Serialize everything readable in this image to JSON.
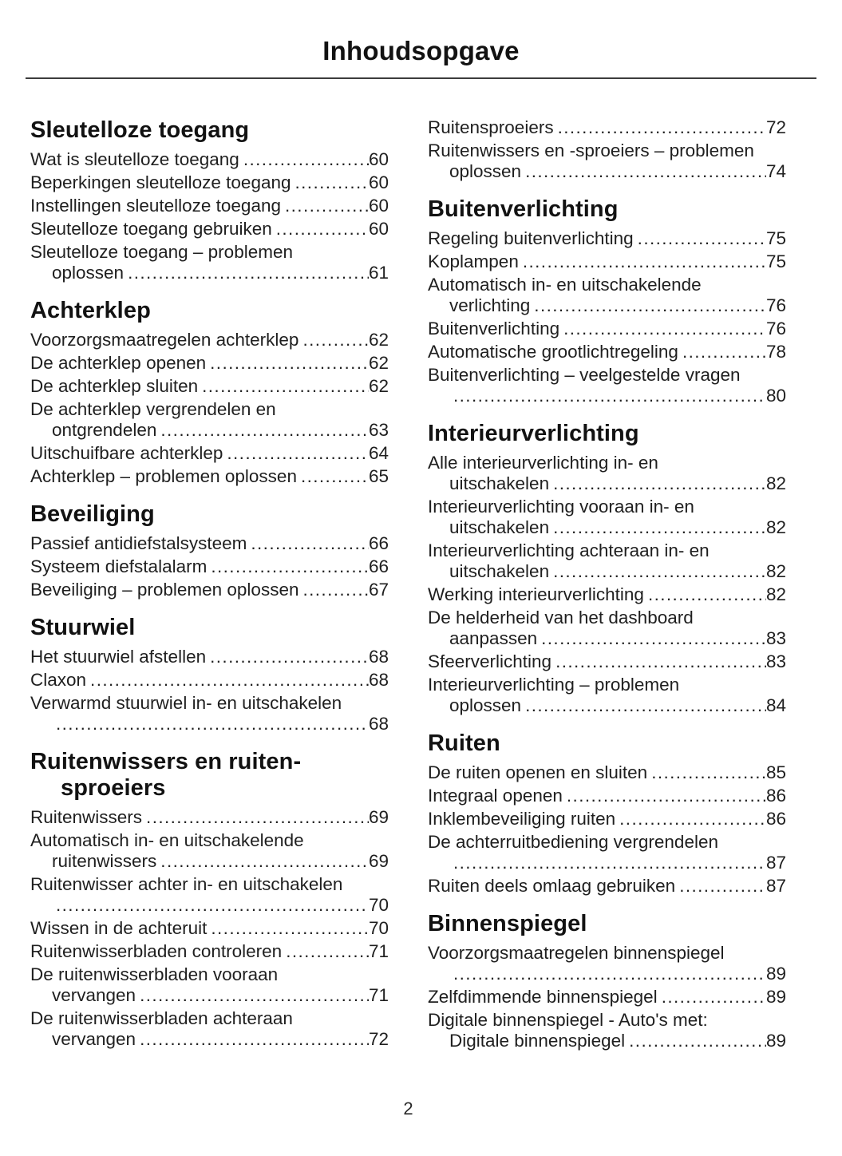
{
  "title": "Inhoudsopgave",
  "page_number": "2",
  "columns": [
    {
      "sections": [
        {
          "title_lines": [
            "Sleutelloze toegang"
          ],
          "entries": [
            {
              "lines": [
                "Wat is sleutelloze toegang"
              ],
              "page": "60"
            },
            {
              "lines": [
                "Beperkingen sleutelloze toegang"
              ],
              "page": "60"
            },
            {
              "lines": [
                "Instellingen sleutelloze toegang"
              ],
              "page": "60"
            },
            {
              "lines": [
                "Sleutelloze toegang gebruiken"
              ],
              "page": "60"
            },
            {
              "lines": [
                "Sleutelloze toegang – problemen",
                "oplossen"
              ],
              "page": "61"
            }
          ]
        },
        {
          "title_lines": [
            "Achterklep"
          ],
          "entries": [
            {
              "lines": [
                "Voorzorgsmaatregelen achterklep"
              ],
              "page": "62"
            },
            {
              "lines": [
                "De achterklep openen"
              ],
              "page": "62"
            },
            {
              "lines": [
                "De achterklep sluiten"
              ],
              "page": "62"
            },
            {
              "lines": [
                "De achterklep vergrendelen en",
                "ontgrendelen"
              ],
              "page": "63"
            },
            {
              "lines": [
                "Uitschuifbare achterklep"
              ],
              "page": "64"
            },
            {
              "lines": [
                "Achterklep – problemen oplossen"
              ],
              "page": "65"
            }
          ]
        },
        {
          "title_lines": [
            "Beveiliging"
          ],
          "entries": [
            {
              "lines": [
                "Passief antidiefstalsysteem"
              ],
              "page": "66"
            },
            {
              "lines": [
                "Systeem diefstalalarm"
              ],
              "page": "66"
            },
            {
              "lines": [
                "Beveiliging – problemen oplossen"
              ],
              "page": "67"
            }
          ]
        },
        {
          "title_lines": [
            "Stuurwiel"
          ],
          "entries": [
            {
              "lines": [
                "Het stuurwiel afstellen"
              ],
              "page": "68"
            },
            {
              "lines": [
                "Claxon"
              ],
              "page": "68"
            },
            {
              "lines": [
                "Verwarmd stuurwiel in- en uitschakelen",
                ""
              ],
              "page": "68"
            }
          ]
        },
        {
          "title_lines": [
            "Ruitenwissers en ruiten-",
            "sproeiers"
          ],
          "entries": [
            {
              "lines": [
                "Ruitenwissers"
              ],
              "page": "69"
            },
            {
              "lines": [
                "Automatisch in- en uitschakelende",
                "ruitenwissers"
              ],
              "page": "69"
            },
            {
              "lines": [
                "Ruitenwisser achter in- en uitschakelen",
                ""
              ],
              "page": "70"
            },
            {
              "lines": [
                "Wissen in de achteruit"
              ],
              "page": "70"
            },
            {
              "lines": [
                "Ruitenwisserbladen controleren"
              ],
              "page": "71"
            },
            {
              "lines": [
                "De ruitenwisserbladen vooraan",
                "vervangen"
              ],
              "page": "71"
            },
            {
              "lines": [
                "De ruitenwisserbladen achteraan",
                "vervangen"
              ],
              "page": "72"
            }
          ]
        }
      ]
    },
    {
      "sections": [
        {
          "title_lines": null,
          "entries": [
            {
              "lines": [
                "Ruitensproeiers"
              ],
              "page": "72"
            },
            {
              "lines": [
                "Ruitenwissers en -sproeiers – problemen",
                "oplossen"
              ],
              "page": "74"
            }
          ]
        },
        {
          "title_lines": [
            "Buitenverlichting"
          ],
          "entries": [
            {
              "lines": [
                "Regeling buitenverlichting"
              ],
              "page": "75"
            },
            {
              "lines": [
                "Koplampen"
              ],
              "page": "75"
            },
            {
              "lines": [
                "Automatisch in- en uitschakelende",
                "verlichting"
              ],
              "page": "76"
            },
            {
              "lines": [
                "Buitenverlichting"
              ],
              "page": "76"
            },
            {
              "lines": [
                "Automatische grootlichtregeling"
              ],
              "page": "78"
            },
            {
              "lines": [
                "Buitenverlichting – veelgestelde vragen",
                ""
              ],
              "page": "80"
            }
          ]
        },
        {
          "title_lines": [
            "Interieurverlichting"
          ],
          "entries": [
            {
              "lines": [
                "Alle interieurverlichting in- en",
                "uitschakelen"
              ],
              "page": "82"
            },
            {
              "lines": [
                "Interieurverlichting vooraan in- en",
                "uitschakelen"
              ],
              "page": "82"
            },
            {
              "lines": [
                "Interieurverlichting achteraan in- en",
                "uitschakelen"
              ],
              "page": "82"
            },
            {
              "lines": [
                "Werking interieurverlichting"
              ],
              "page": "82"
            },
            {
              "lines": [
                "De helderheid van het dashboard",
                "aanpassen"
              ],
              "page": "83"
            },
            {
              "lines": [
                "Sfeerverlichting"
              ],
              "page": "83"
            },
            {
              "lines": [
                "Interieurverlichting – problemen",
                "oplossen"
              ],
              "page": "84"
            }
          ]
        },
        {
          "title_lines": [
            "Ruiten"
          ],
          "entries": [
            {
              "lines": [
                "De ruiten openen en sluiten"
              ],
              "page": "85"
            },
            {
              "lines": [
                "Integraal openen"
              ],
              "page": "86"
            },
            {
              "lines": [
                "Inklembeveiliging ruiten"
              ],
              "page": "86"
            },
            {
              "lines": [
                "De achterruitbediening vergrendelen",
                ""
              ],
              "page": "87"
            },
            {
              "lines": [
                "Ruiten deels omlaag gebruiken"
              ],
              "page": "87"
            }
          ]
        },
        {
          "title_lines": [
            "Binnenspiegel"
          ],
          "entries": [
            {
              "lines": [
                "Voorzorgsmaatregelen binnenspiegel",
                ""
              ],
              "page": "89"
            },
            {
              "lines": [
                "Zelfdimmende binnenspiegel"
              ],
              "page": "89"
            },
            {
              "lines": [
                "Digitale binnenspiegel - Auto's met:",
                "Digitale binnenspiegel"
              ],
              "page": "89"
            }
          ]
        }
      ]
    }
  ]
}
